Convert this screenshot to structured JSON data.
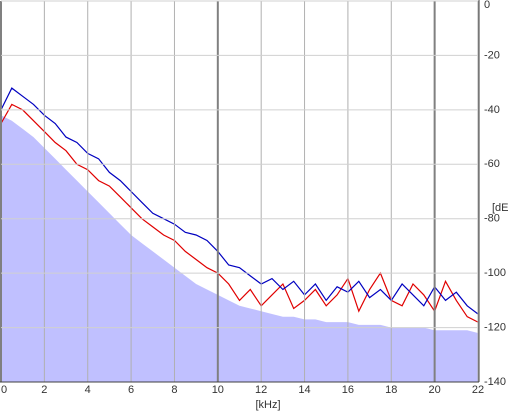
{
  "chart_data": {
    "type": "line",
    "x_label": "[kHz]",
    "y_label": "[dE",
    "x": [
      0,
      0.5,
      1,
      1.5,
      2,
      2.5,
      3,
      3.5,
      4,
      4.5,
      5,
      5.5,
      6,
      6.5,
      7,
      7.5,
      8,
      8.5,
      9,
      9.5,
      10,
      10.5,
      11,
      11.5,
      12,
      12.5,
      13,
      13.5,
      14,
      14.5,
      15,
      15.5,
      16,
      16.5,
      17,
      17.5,
      18,
      18.5,
      19,
      19.5,
      20,
      20.5,
      21,
      21.5,
      22
    ],
    "series": [
      {
        "type": "area",
        "color": "#c0c0ff",
        "values": [
          -42,
          -44,
          -47,
          -50,
          -54,
          -58,
          -62,
          -66,
          -70,
          -74,
          -78,
          -82,
          -86,
          -89,
          -92,
          -95,
          -98,
          -101,
          -104,
          -106,
          -108,
          -110,
          -112,
          -113,
          -114,
          -115,
          -116,
          -116,
          -117,
          -117,
          -118,
          -118,
          -118,
          -119,
          -119,
          -119,
          -120,
          -120,
          -120,
          -120,
          -121,
          -121,
          -121,
          -121,
          -122
        ]
      },
      {
        "type": "line",
        "color": "#e00000",
        "values": [
          -45,
          -38,
          -40,
          -44,
          -48,
          -52,
          -55,
          -60,
          -62,
          -66,
          -68,
          -72,
          -76,
          -80,
          -83,
          -86,
          -88,
          -92,
          -95,
          -98,
          -100,
          -104,
          -110,
          -106,
          -112,
          -108,
          -104,
          -113,
          -110,
          -106,
          -112,
          -108,
          -102,
          -114,
          -106,
          -100,
          -110,
          -112,
          -104,
          -108,
          -114,
          -103,
          -110,
          -116,
          -118
        ]
      },
      {
        "type": "line",
        "color": "#0000c0",
        "values": [
          -40,
          -32,
          -35,
          -38,
          -42,
          -45,
          -50,
          -52,
          -56,
          -58,
          -63,
          -66,
          -70,
          -74,
          -78,
          -80,
          -82,
          -85,
          -86,
          -88,
          -92,
          -97,
          -98,
          -101,
          -104,
          -102,
          -106,
          -103,
          -108,
          -104,
          -110,
          -105,
          -107,
          -103,
          -109,
          -106,
          -110,
          -104,
          -108,
          -112,
          -105,
          -110,
          -107,
          -112,
          -115
        ]
      }
    ],
    "xlim": [
      0,
      22
    ],
    "xticks": [
      0,
      2,
      4,
      6,
      8,
      10,
      12,
      14,
      16,
      18,
      20,
      22
    ],
    "ylim": [
      -140,
      0
    ],
    "yticks": [
      0,
      -20,
      -40,
      -60,
      -80,
      -100,
      -120,
      -140
    ],
    "grid": true
  }
}
